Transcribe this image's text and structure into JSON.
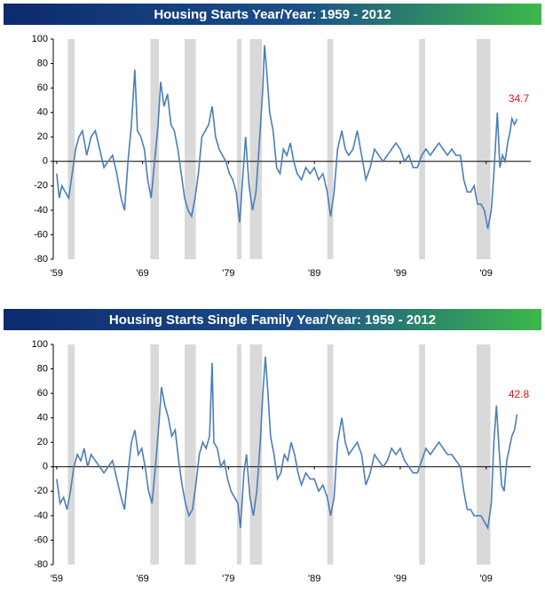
{
  "chart_data": [
    {
      "type": "line",
      "title": "Housing Starts Year/Year: 1959 - 2012",
      "xlim": [
        1958.6,
        2014.2
      ],
      "ylim": [
        -80,
        100
      ],
      "yticks": [
        -80,
        -60,
        -40,
        -20,
        0,
        20,
        40,
        60,
        80,
        100
      ],
      "xticks": [
        {
          "value": 1959,
          "label": "'59"
        },
        {
          "value": 1969,
          "label": "'69"
        },
        {
          "value": 1979,
          "label": "'79"
        },
        {
          "value": 1989,
          "label": "'89"
        },
        {
          "value": 1999,
          "label": "'99"
        },
        {
          "value": 2009,
          "label": "'09"
        }
      ],
      "recessions": [
        [
          1960.3,
          1961.1
        ],
        [
          1969.9,
          1970.9
        ],
        [
          1973.9,
          1975.2
        ],
        [
          1980.0,
          1980.5
        ],
        [
          1981.5,
          1982.9
        ],
        [
          1990.5,
          1991.2
        ],
        [
          2001.2,
          2001.9
        ],
        [
          2007.9,
          2009.5
        ]
      ],
      "series": [
        {
          "color": "#4a7ebb",
          "x": [
            1959.0,
            1959.3,
            1959.6,
            1960.0,
            1960.4,
            1960.8,
            1961.2,
            1961.6,
            1962.0,
            1962.5,
            1963.0,
            1963.5,
            1964.0,
            1964.5,
            1965.0,
            1965.5,
            1966.0,
            1966.5,
            1966.9,
            1967.3,
            1967.7,
            1968.1,
            1968.4,
            1968.8,
            1969.2,
            1969.6,
            1970.0,
            1970.4,
            1970.8,
            1971.1,
            1971.5,
            1971.9,
            1972.3,
            1972.7,
            1973.1,
            1973.5,
            1973.9,
            1974.3,
            1974.7,
            1975.1,
            1975.5,
            1975.9,
            1976.3,
            1976.7,
            1977.1,
            1977.5,
            1977.9,
            1978.3,
            1978.7,
            1979.1,
            1979.5,
            1979.9,
            1980.3,
            1980.7,
            1981.0,
            1981.4,
            1981.8,
            1982.2,
            1982.6,
            1983.0,
            1983.2,
            1983.5,
            1983.8,
            1984.2,
            1984.6,
            1985.0,
            1985.4,
            1985.8,
            1986.2,
            1986.6,
            1987.0,
            1987.5,
            1988.0,
            1988.5,
            1989.0,
            1989.5,
            1990.0,
            1990.5,
            1990.9,
            1991.3,
            1991.7,
            1992.2,
            1992.6,
            1993.0,
            1993.5,
            1994.0,
            1994.5,
            1995.0,
            1995.5,
            1996.0,
            1996.5,
            1997.0,
            1997.5,
            1998.0,
            1998.5,
            1999.0,
            1999.5,
            2000.0,
            2000.5,
            2001.0,
            2001.5,
            2002.0,
            2002.5,
            2003.0,
            2003.5,
            2004.0,
            2004.5,
            2005.0,
            2005.5,
            2006.0,
            2006.4,
            2006.8,
            2007.2,
            2007.6,
            2008.0,
            2008.4,
            2008.8,
            2009.2,
            2009.6,
            2009.9,
            2010.3,
            2010.6,
            2010.9,
            2011.2,
            2011.5,
            2011.8,
            2012.0,
            2012.3,
            2012.6
          ],
          "values": [
            -10,
            -30,
            -20,
            -25,
            -30,
            -10,
            10,
            20,
            25,
            5,
            20,
            25,
            10,
            -5,
            0,
            5,
            -10,
            -30,
            -40,
            0,
            30,
            75,
            25,
            20,
            10,
            -15,
            -30,
            0,
            30,
            65,
            45,
            55,
            30,
            25,
            10,
            -10,
            -30,
            -40,
            -45,
            -30,
            -10,
            20,
            25,
            30,
            45,
            20,
            10,
            5,
            0,
            -10,
            -15,
            -25,
            -50,
            -10,
            20,
            -20,
            -40,
            -25,
            15,
            60,
            95,
            70,
            40,
            25,
            -5,
            -10,
            10,
            5,
            15,
            0,
            -10,
            -15,
            -5,
            -10,
            -5,
            -15,
            -10,
            -25,
            -45,
            -25,
            10,
            25,
            10,
            5,
            10,
            25,
            5,
            -15,
            -5,
            10,
            5,
            0,
            5,
            10,
            15,
            10,
            0,
            5,
            -5,
            -5,
            5,
            10,
            5,
            10,
            15,
            10,
            5,
            10,
            5,
            5,
            -15,
            -25,
            -25,
            -20,
            -35,
            -35,
            -40,
            -55,
            -40,
            -10,
            40,
            -5,
            5,
            0,
            15,
            25,
            35,
            30,
            34.7
          ]
        }
      ]
    },
    {
      "type": "line",
      "title": "Housing Starts Single Family Year/Year: 1959 - 2012",
      "xlim": [
        1958.6,
        2014.2
      ],
      "ylim": [
        -80,
        100
      ],
      "yticks": [
        -80,
        -60,
        -40,
        -20,
        0,
        20,
        40,
        60,
        80,
        100
      ],
      "xticks": [
        {
          "value": 1959,
          "label": "'59"
        },
        {
          "value": 1969,
          "label": "'69"
        },
        {
          "value": 1979,
          "label": "'79"
        },
        {
          "value": 1989,
          "label": "'89"
        },
        {
          "value": 1999,
          "label": "'99"
        },
        {
          "value": 2009,
          "label": "'09"
        }
      ],
      "recessions": [
        [
          1960.3,
          1961.1
        ],
        [
          1969.9,
          1970.9
        ],
        [
          1973.9,
          1975.2
        ],
        [
          1980.0,
          1980.5
        ],
        [
          1981.5,
          1982.9
        ],
        [
          1990.5,
          1991.2
        ],
        [
          2001.2,
          2001.9
        ],
        [
          2007.9,
          2009.5
        ]
      ],
      "series": [
        {
          "color": "#4a7ebb",
          "x": [
            1959.0,
            1959.4,
            1959.8,
            1960.2,
            1960.6,
            1961.0,
            1961.4,
            1961.8,
            1962.2,
            1962.6,
            1963.0,
            1963.5,
            1964.0,
            1964.5,
            1965.0,
            1965.5,
            1966.0,
            1966.5,
            1966.9,
            1967.3,
            1967.7,
            1968.1,
            1968.5,
            1968.9,
            1969.3,
            1969.7,
            1970.1,
            1970.5,
            1970.9,
            1971.2,
            1971.6,
            1972.0,
            1972.4,
            1972.8,
            1973.2,
            1973.6,
            1974.0,
            1974.4,
            1974.8,
            1975.2,
            1975.6,
            1976.0,
            1976.4,
            1976.8,
            1977.1,
            1977.3,
            1977.7,
            1978.1,
            1978.5,
            1978.9,
            1979.3,
            1979.7,
            1980.1,
            1980.4,
            1980.8,
            1981.1,
            1981.5,
            1981.9,
            1982.3,
            1982.7,
            1983.0,
            1983.3,
            1983.6,
            1983.9,
            1984.3,
            1984.7,
            1985.1,
            1985.5,
            1985.9,
            1986.3,
            1986.7,
            1987.1,
            1987.5,
            1988.0,
            1988.5,
            1989.0,
            1989.5,
            1990.0,
            1990.5,
            1990.9,
            1991.3,
            1991.7,
            1992.2,
            1992.6,
            1993.0,
            1993.5,
            1994.0,
            1994.5,
            1995.0,
            1995.5,
            1996.0,
            1996.5,
            1997.0,
            1997.5,
            1998.0,
            1998.5,
            1999.0,
            1999.5,
            2000.0,
            2000.5,
            2001.0,
            2001.5,
            2002.0,
            2002.5,
            2003.0,
            2003.5,
            2004.0,
            2004.5,
            2005.0,
            2005.5,
            2006.0,
            2006.4,
            2006.8,
            2007.2,
            2007.6,
            2008.0,
            2008.4,
            2008.8,
            2009.2,
            2009.6,
            2009.9,
            2010.2,
            2010.5,
            2010.8,
            2011.1,
            2011.4,
            2011.7,
            2012.0,
            2012.3,
            2012.6
          ],
          "values": [
            -10,
            -30,
            -25,
            -35,
            -20,
            0,
            10,
            5,
            15,
            0,
            10,
            5,
            0,
            -5,
            0,
            5,
            -10,
            -25,
            -35,
            -5,
            20,
            30,
            10,
            15,
            0,
            -20,
            -30,
            0,
            35,
            65,
            50,
            40,
            25,
            30,
            5,
            -15,
            -30,
            -40,
            -35,
            -15,
            10,
            20,
            15,
            25,
            85,
            20,
            15,
            0,
            5,
            -10,
            -20,
            -25,
            -30,
            -50,
            -5,
            10,
            -25,
            -40,
            -20,
            20,
            60,
            90,
            60,
            25,
            10,
            -10,
            -5,
            10,
            5,
            20,
            10,
            -5,
            -15,
            -5,
            -10,
            -10,
            -20,
            -15,
            -25,
            -40,
            -25,
            20,
            40,
            20,
            10,
            15,
            20,
            10,
            -15,
            -5,
            10,
            5,
            0,
            5,
            15,
            10,
            15,
            5,
            0,
            -5,
            -5,
            5,
            15,
            10,
            15,
            20,
            15,
            10,
            10,
            5,
            0,
            -20,
            -35,
            -35,
            -40,
            -40,
            -40,
            -45,
            -50,
            -30,
            20,
            50,
            15,
            -15,
            -20,
            5,
            15,
            25,
            30,
            42.8
          ]
        }
      ]
    }
  ]
}
